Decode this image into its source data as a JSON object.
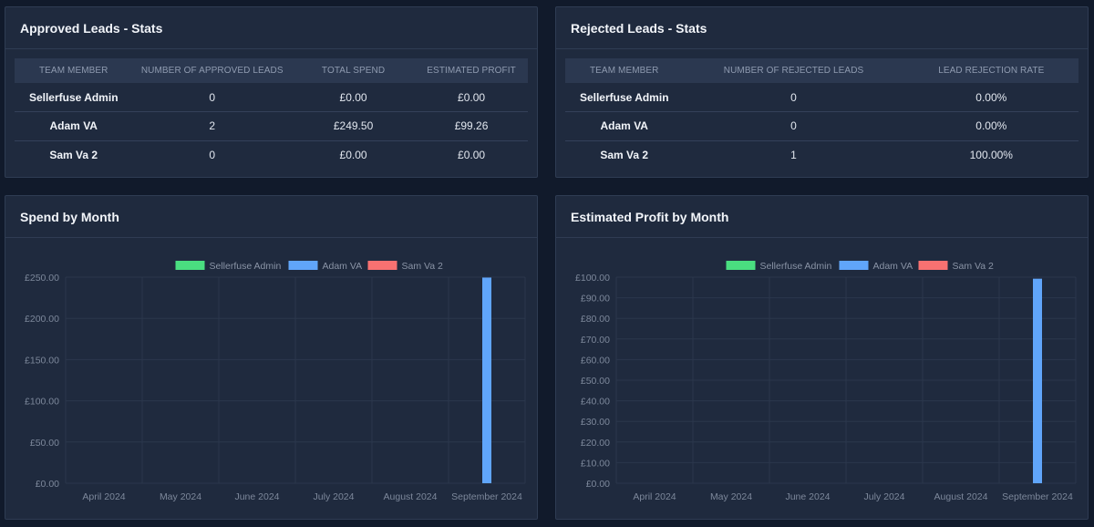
{
  "approved": {
    "title": "Approved Leads - Stats",
    "headers": [
      "Team Member",
      "Number of Approved Leads",
      "Total Spend",
      "Estimated Profit"
    ],
    "rows": [
      [
        "Sellerfuse Admin",
        "0",
        "£0.00",
        "£0.00"
      ],
      [
        "Adam VA",
        "2",
        "£249.50",
        "£99.26"
      ],
      [
        "Sam Va 2",
        "0",
        "£0.00",
        "£0.00"
      ]
    ]
  },
  "rejected": {
    "title": "Rejected Leads - Stats",
    "headers": [
      "Team Member",
      "Number of Rejected Leads",
      "Lead Rejection Rate"
    ],
    "rows": [
      [
        "Sellerfuse Admin",
        "0",
        "0.00%"
      ],
      [
        "Adam VA",
        "0",
        "0.00%"
      ],
      [
        "Sam Va 2",
        "1",
        "100.00%"
      ]
    ]
  },
  "chart_data": [
    {
      "id": "spend",
      "type": "bar",
      "title": "Spend by Month",
      "categories": [
        "April 2024",
        "May 2024",
        "June 2024",
        "July 2024",
        "August 2024",
        "September 2024"
      ],
      "series": [
        {
          "name": "Sellerfuse Admin",
          "color": "#4ade80",
          "values": [
            0,
            0,
            0,
            0,
            0,
            0
          ]
        },
        {
          "name": "Adam VA",
          "color": "#60a5fa",
          "values": [
            0,
            0,
            0,
            0,
            0,
            249.5
          ]
        },
        {
          "name": "Sam Va 2",
          "color": "#f87171",
          "values": [
            0,
            0,
            0,
            0,
            0,
            0
          ]
        }
      ],
      "ylim": [
        0,
        250
      ],
      "yticks": [
        0,
        50,
        100,
        150,
        200,
        250
      ],
      "ytick_labels": [
        "£0.00",
        "£50.00",
        "£100.00",
        "£150.00",
        "£200.00",
        "£250.00"
      ],
      "xlabel": "",
      "ylabel": "",
      "legend": "top-center"
    },
    {
      "id": "profit",
      "type": "bar",
      "title": "Estimated Profit by Month",
      "categories": [
        "April 2024",
        "May 2024",
        "June 2024",
        "July 2024",
        "August 2024",
        "September 2024"
      ],
      "series": [
        {
          "name": "Sellerfuse Admin",
          "color": "#4ade80",
          "values": [
            0,
            0,
            0,
            0,
            0,
            0
          ]
        },
        {
          "name": "Adam VA",
          "color": "#60a5fa",
          "values": [
            0,
            0,
            0,
            0,
            0,
            99.26
          ]
        },
        {
          "name": "Sam Va 2",
          "color": "#f87171",
          "values": [
            0,
            0,
            0,
            0,
            0,
            0
          ]
        }
      ],
      "ylim": [
        0,
        100
      ],
      "yticks": [
        0,
        10,
        20,
        30,
        40,
        50,
        60,
        70,
        80,
        90,
        100
      ],
      "ytick_labels": [
        "£0.00",
        "£10.00",
        "£20.00",
        "£30.00",
        "£40.00",
        "£50.00",
        "£60.00",
        "£70.00",
        "£80.00",
        "£90.00",
        "£100.00"
      ],
      "xlabel": "",
      "ylabel": "",
      "legend": "top-center"
    }
  ]
}
